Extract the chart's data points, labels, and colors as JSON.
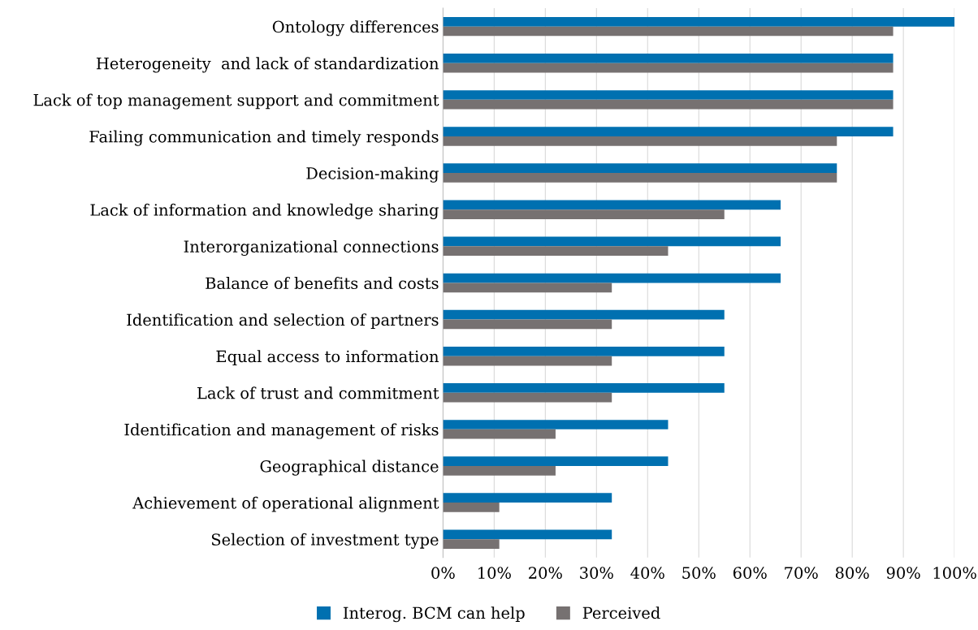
{
  "chart_data": {
    "type": "bar",
    "orientation": "horizontal",
    "categories": [
      "Ontology differences",
      "Heterogeneity  and lack of standardization",
      "Lack of top management support and commitment",
      "Failing communication and timely responds",
      "Decision-making",
      "Lack of information and knowledge sharing",
      "Interorganizational connections",
      "Balance of benefits and costs",
      "Identification and selection of partners",
      "Equal access to information",
      "Lack of trust and commitment",
      "Identification and management of risks",
      "Geographical distance",
      "Achievement of operational alignment",
      "Selection of investment type"
    ],
    "series": [
      {
        "name": "Interog. BCM can help",
        "color": "#0070b0",
        "values": [
          100,
          88,
          88,
          88,
          77,
          66,
          66,
          66,
          55,
          55,
          55,
          44,
          44,
          33,
          33
        ]
      },
      {
        "name": "Perceived",
        "color": "#767171",
        "values": [
          88,
          88,
          88,
          77,
          77,
          55,
          44,
          33,
          33,
          33,
          33,
          22,
          22,
          11,
          11
        ]
      }
    ],
    "xlim": [
      0,
      100
    ],
    "xticks": [
      {
        "value": 0,
        "label": "0%"
      },
      {
        "value": 10,
        "label": "10%"
      },
      {
        "value": 20,
        "label": "20%"
      },
      {
        "value": 30,
        "label": "30%"
      },
      {
        "value": 40,
        "label": "40%"
      },
      {
        "value": 50,
        "label": "50%"
      },
      {
        "value": 60,
        "label": "60%"
      },
      {
        "value": 70,
        "label": "70%"
      },
      {
        "value": 80,
        "label": "80%"
      },
      {
        "value": 90,
        "label": "90%"
      },
      {
        "value": 100,
        "label": "100%"
      }
    ],
    "grid": "x",
    "legend": "bottom"
  }
}
